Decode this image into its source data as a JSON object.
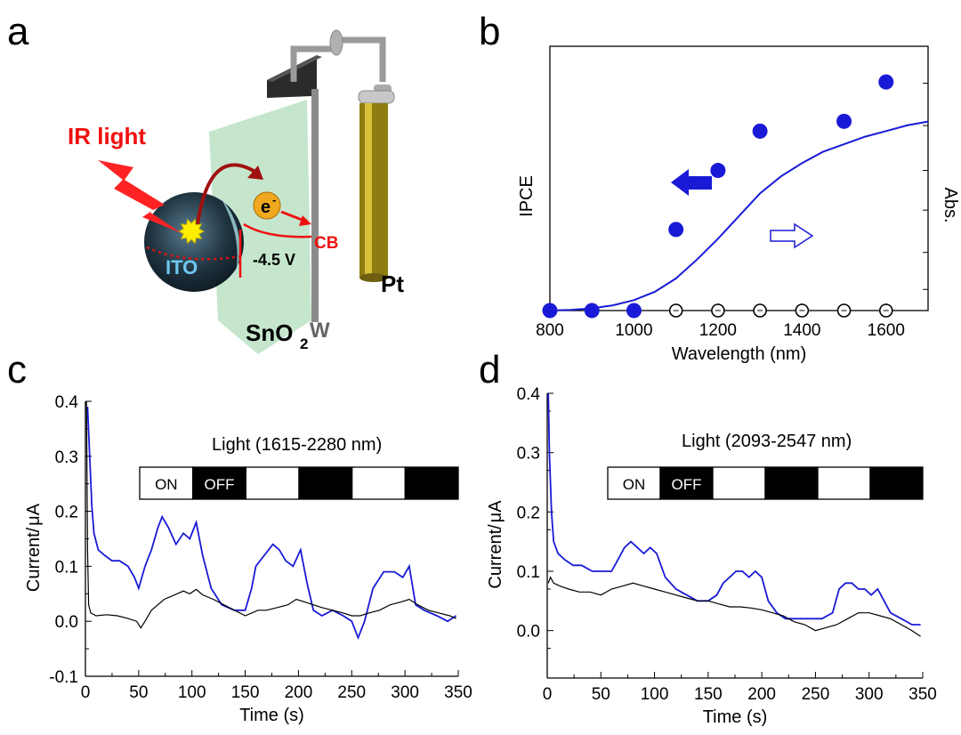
{
  "panels": {
    "a": "a",
    "b": "b",
    "c": "c",
    "d": "d"
  },
  "diagram": {
    "ir_light": "IR light",
    "electron": "e",
    "electron_sup": "-",
    "cb": "CB",
    "voltage": "-4.5 V",
    "ito": "ITO",
    "pt": "Pt",
    "sno2": "SnO",
    "sno2_sub": "2",
    "w": "W"
  },
  "colors": {
    "blue": "#1a1ad6",
    "red": "#ee1111",
    "black": "#000000"
  },
  "chart_data": [
    {
      "panel": "b",
      "type": "scatter",
      "xlabel": "Wavelength (nm)",
      "ylabel": "IPCE",
      "y2label": "Abs.",
      "xlim": [
        800,
        1700
      ],
      "x_ticks": [
        800,
        1000,
        1200,
        1400,
        1600
      ],
      "y_ticks_labeled": false,
      "series": [
        {
          "axis": "left",
          "marker": "filled-circle",
          "color": "#1a1ad6",
          "x": [
            800,
            900,
            1000,
            1100,
            1200,
            1300,
            1500,
            1600
          ],
          "y": [
            0.0,
            0.0,
            0.0,
            0.33,
            0.57,
            0.73,
            0.77,
            0.93
          ]
        },
        {
          "axis": "left",
          "marker": "open-circle",
          "color": "#000000",
          "x": [
            900,
            1000,
            1100,
            1200,
            1300,
            1400,
            1500,
            1600
          ],
          "y": [
            0,
            0,
            0,
            0,
            0,
            0,
            0,
            0
          ]
        },
        {
          "axis": "right",
          "line": true,
          "color": "#1a1ad6",
          "x": [
            800,
            850,
            900,
            950,
            1000,
            1050,
            1100,
            1150,
            1200,
            1250,
            1300,
            1350,
            1400,
            1450,
            1500,
            1550,
            1600,
            1650,
            1700
          ],
          "y": [
            0.0,
            0.004,
            0.012,
            0.028,
            0.055,
            0.1,
            0.17,
            0.27,
            0.38,
            0.5,
            0.62,
            0.71,
            0.78,
            0.84,
            0.88,
            0.92,
            0.95,
            0.98,
            1.0
          ]
        }
      ]
    },
    {
      "panel": "c",
      "type": "line",
      "xlabel": "Time (s)",
      "ylabel": "Current/",
      "ylabel_unit": "μA",
      "annotation": "Light (1615-2280 nm)",
      "light_box": [
        "ON",
        "OFF",
        "",
        "",
        "",
        ""
      ],
      "xlim": [
        0,
        350
      ],
      "ylim": [
        -0.1,
        0.4
      ],
      "x_ticks": [
        0,
        50,
        100,
        150,
        200,
        250,
        300,
        350
      ],
      "y_ticks": [
        "-0.1",
        "0.0",
        "0.1",
        "0.2",
        "0.3",
        "0.4"
      ],
      "series": [
        {
          "color": "#1a1ad6",
          "x": [
            2,
            4,
            6,
            8,
            12,
            18,
            25,
            32,
            40,
            46,
            50,
            56,
            62,
            68,
            72,
            78,
            85,
            92,
            98,
            104,
            110,
            118,
            128,
            140,
            150,
            156,
            160,
            168,
            176,
            182,
            188,
            195,
            202,
            208,
            214,
            222,
            232,
            242,
            250,
            256,
            262,
            270,
            280,
            290,
            298,
            304,
            310,
            318,
            330,
            340,
            348
          ],
          "y": [
            0.39,
            0.3,
            0.21,
            0.16,
            0.13,
            0.12,
            0.11,
            0.11,
            0.1,
            0.08,
            0.06,
            0.1,
            0.13,
            0.17,
            0.19,
            0.17,
            0.14,
            0.16,
            0.15,
            0.18,
            0.12,
            0.06,
            0.03,
            0.02,
            0.02,
            0.06,
            0.1,
            0.12,
            0.14,
            0.13,
            0.11,
            0.1,
            0.13,
            0.07,
            0.02,
            0.01,
            0.02,
            0.01,
            0.0,
            -0.03,
            0.0,
            0.06,
            0.09,
            0.09,
            0.08,
            0.1,
            0.03,
            0.02,
            0.01,
            0.0,
            0.01
          ]
        },
        {
          "color": "#000000",
          "x": [
            1,
            2,
            3,
            5,
            10,
            20,
            30,
            40,
            48,
            52,
            56,
            62,
            68,
            74,
            80,
            86,
            92,
            98,
            104,
            110,
            120,
            130,
            140,
            150,
            156,
            162,
            170,
            180,
            190,
            198,
            206,
            214,
            222,
            232,
            242,
            250,
            258,
            266,
            276,
            286,
            296,
            304,
            312,
            322,
            332,
            342,
            348
          ],
          "y": [
            0.4,
            0.13,
            0.03,
            0.015,
            0.01,
            0.012,
            0.01,
            0.005,
            0.0,
            -0.012,
            0.0,
            0.02,
            0.03,
            0.04,
            0.045,
            0.05,
            0.055,
            0.05,
            0.058,
            0.048,
            0.04,
            0.03,
            0.02,
            0.01,
            0.015,
            0.02,
            0.02,
            0.025,
            0.03,
            0.04,
            0.035,
            0.03,
            0.025,
            0.02,
            0.015,
            0.01,
            0.01,
            0.015,
            0.02,
            0.03,
            0.035,
            0.04,
            0.03,
            0.02,
            0.015,
            0.01,
            0.005
          ]
        }
      ]
    },
    {
      "panel": "d",
      "type": "line",
      "xlabel": "Time (s)",
      "ylabel": "Current/",
      "ylabel_unit": "μA",
      "annotation": "Light (2093-2547 nm)",
      "light_box": [
        "ON",
        "OFF",
        "",
        "",
        "",
        ""
      ],
      "xlim": [
        0,
        350
      ],
      "ylim": [
        -0.08,
        0.4
      ],
      "x_ticks": [
        0,
        50,
        100,
        150,
        200,
        250,
        300,
        350
      ],
      "y_ticks": [
        "0.0",
        "0.1",
        "0.2",
        "0.3",
        "0.4"
      ],
      "series": [
        {
          "color": "#1a1ad6",
          "x": [
            1,
            2,
            4,
            6,
            10,
            16,
            24,
            32,
            42,
            52,
            60,
            66,
            72,
            78,
            84,
            90,
            96,
            102,
            110,
            120,
            130,
            140,
            150,
            158,
            164,
            170,
            176,
            182,
            188,
            194,
            200,
            206,
            214,
            222,
            232,
            244,
            256,
            266,
            272,
            278,
            284,
            290,
            296,
            302,
            308,
            314,
            320,
            330,
            340,
            348
          ],
          "y": [
            0.4,
            0.3,
            0.2,
            0.15,
            0.13,
            0.12,
            0.11,
            0.11,
            0.1,
            0.1,
            0.1,
            0.12,
            0.14,
            0.15,
            0.14,
            0.13,
            0.14,
            0.13,
            0.09,
            0.07,
            0.06,
            0.05,
            0.05,
            0.06,
            0.08,
            0.09,
            0.1,
            0.1,
            0.09,
            0.1,
            0.09,
            0.05,
            0.03,
            0.02,
            0.02,
            0.02,
            0.02,
            0.03,
            0.07,
            0.08,
            0.08,
            0.07,
            0.07,
            0.06,
            0.07,
            0.05,
            0.03,
            0.02,
            0.01,
            0.01
          ]
        },
        {
          "color": "#000000",
          "x": [
            1,
            3,
            6,
            12,
            20,
            30,
            40,
            50,
            60,
            70,
            80,
            90,
            100,
            110,
            120,
            130,
            140,
            150,
            160,
            170,
            180,
            190,
            200,
            210,
            220,
            230,
            240,
            250,
            260,
            270,
            280,
            290,
            300,
            310,
            320,
            330,
            340,
            348
          ],
          "y": [
            0.08,
            0.09,
            0.08,
            0.075,
            0.07,
            0.065,
            0.065,
            0.06,
            0.07,
            0.075,
            0.08,
            0.075,
            0.07,
            0.065,
            0.06,
            0.055,
            0.05,
            0.05,
            0.045,
            0.04,
            0.04,
            0.038,
            0.035,
            0.03,
            0.025,
            0.015,
            0.01,
            0.0,
            0.005,
            0.01,
            0.02,
            0.03,
            0.03,
            0.025,
            0.02,
            0.01,
            0.0,
            -0.01
          ]
        }
      ]
    }
  ]
}
